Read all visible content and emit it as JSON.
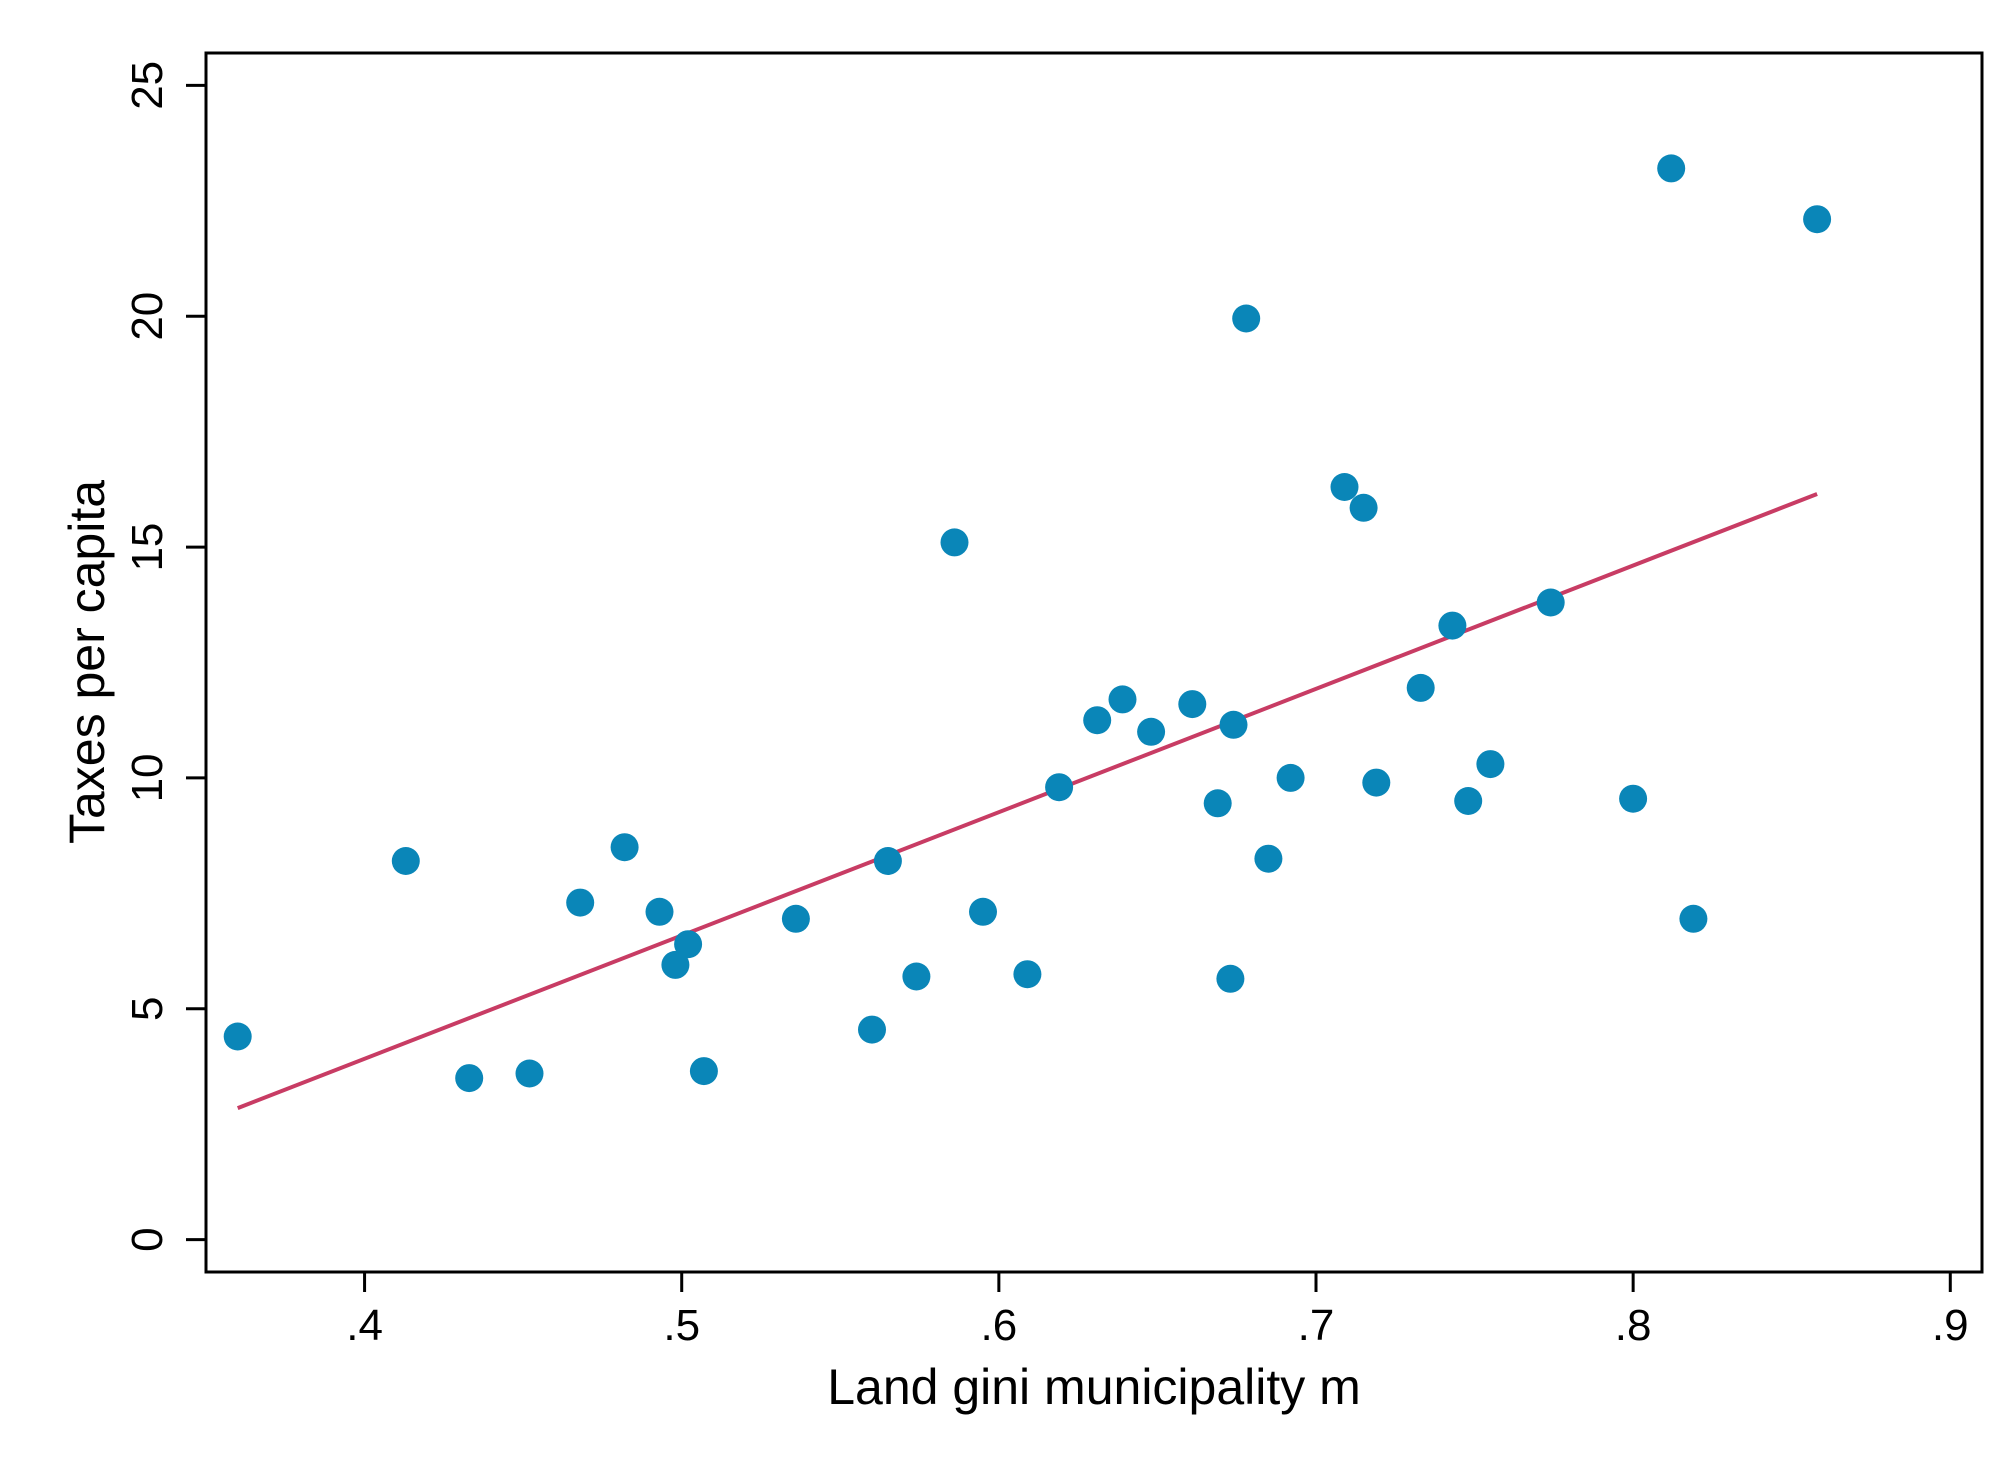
{
  "chart_data": {
    "type": "scatter",
    "xlabel": "Land gini municipality m",
    "ylabel": "Taxes per capita",
    "xlim": [
      0.35,
      0.91
    ],
    "ylim": [
      -0.7,
      25.7
    ],
    "grid": false,
    "x_ticks": [
      {
        "value": 0.4,
        "label": ".4"
      },
      {
        "value": 0.5,
        "label": ".5"
      },
      {
        "value": 0.6,
        "label": ".6"
      },
      {
        "value": 0.7,
        "label": ".7"
      },
      {
        "value": 0.8,
        "label": ".8"
      },
      {
        "value": 0.9,
        "label": ".9"
      }
    ],
    "y_ticks": [
      {
        "value": 0,
        "label": "0"
      },
      {
        "value": 5,
        "label": "5"
      },
      {
        "value": 10,
        "label": "10"
      },
      {
        "value": 15,
        "label": "15"
      },
      {
        "value": 20,
        "label": "20"
      },
      {
        "value": 25,
        "label": "25"
      }
    ],
    "series": [
      {
        "type": "scatter",
        "color": "#0a86b8",
        "points": [
          {
            "x": 0.36,
            "y": 4.4
          },
          {
            "x": 0.413,
            "y": 8.2
          },
          {
            "x": 0.433,
            "y": 3.5
          },
          {
            "x": 0.452,
            "y": 3.6
          },
          {
            "x": 0.468,
            "y": 7.3
          },
          {
            "x": 0.482,
            "y": 8.5
          },
          {
            "x": 0.493,
            "y": 7.1
          },
          {
            "x": 0.498,
            "y": 5.95
          },
          {
            "x": 0.502,
            "y": 6.4
          },
          {
            "x": 0.507,
            "y": 3.65
          },
          {
            "x": 0.536,
            "y": 6.95
          },
          {
            "x": 0.56,
            "y": 4.55
          },
          {
            "x": 0.565,
            "y": 8.2
          },
          {
            "x": 0.574,
            "y": 5.7
          },
          {
            "x": 0.586,
            "y": 15.1
          },
          {
            "x": 0.595,
            "y": 7.1
          },
          {
            "x": 0.609,
            "y": 5.75
          },
          {
            "x": 0.619,
            "y": 9.8
          },
          {
            "x": 0.631,
            "y": 11.25
          },
          {
            "x": 0.639,
            "y": 11.7
          },
          {
            "x": 0.648,
            "y": 11.0
          },
          {
            "x": 0.661,
            "y": 11.6
          },
          {
            "x": 0.669,
            "y": 9.45
          },
          {
            "x": 0.673,
            "y": 5.65
          },
          {
            "x": 0.674,
            "y": 11.15
          },
          {
            "x": 0.678,
            "y": 19.95
          },
          {
            "x": 0.685,
            "y": 8.25
          },
          {
            "x": 0.692,
            "y": 10.0
          },
          {
            "x": 0.709,
            "y": 16.3
          },
          {
            "x": 0.715,
            "y": 15.85
          },
          {
            "x": 0.719,
            "y": 9.9
          },
          {
            "x": 0.733,
            "y": 11.95
          },
          {
            "x": 0.743,
            "y": 13.3
          },
          {
            "x": 0.748,
            "y": 9.5
          },
          {
            "x": 0.755,
            "y": 10.3
          },
          {
            "x": 0.774,
            "y": 13.8
          },
          {
            "x": 0.8,
            "y": 9.55
          },
          {
            "x": 0.812,
            "y": 23.2
          },
          {
            "x": 0.819,
            "y": 6.95
          },
          {
            "x": 0.858,
            "y": 22.1
          }
        ]
      },
      {
        "type": "line",
        "color": "#c83c64",
        "points": [
          {
            "x": 0.36,
            "y": 2.85
          },
          {
            "x": 0.858,
            "y": 16.15
          }
        ]
      }
    ]
  }
}
